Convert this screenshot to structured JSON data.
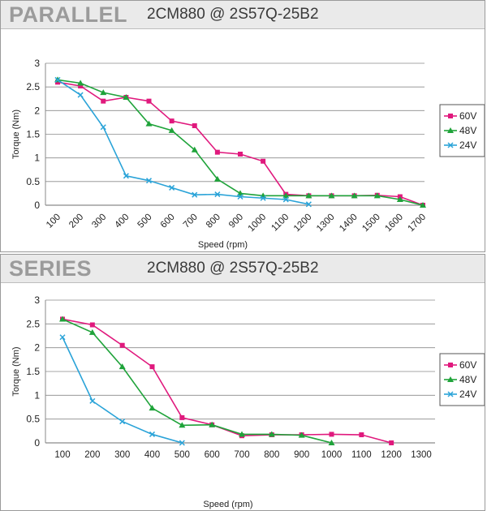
{
  "charts": [
    {
      "section_title": "PARALLEL",
      "model_title": "2CM880 @ 2S57Q-25B2",
      "chart_data": {
        "type": "line",
        "xlabel": "Speed (rpm)",
        "ylabel": "Torque (Nm)",
        "ylim": [
          0,
          3
        ],
        "yticks": [
          "0",
          "0.5",
          "1",
          "1.5",
          "2",
          "2.5",
          "3"
        ],
        "xticks": [
          "100",
          "200",
          "300",
          "400",
          "500",
          "600",
          "700",
          "800",
          "900",
          "1000",
          "1100",
          "1200",
          "1300",
          "1400",
          "1500",
          "1600",
          "1700"
        ],
        "grid": "horizontal",
        "legend": "right",
        "series": [
          {
            "name": "60V",
            "color": "#e0197d",
            "marker": "square",
            "x": [
              100,
              200,
              300,
              400,
              500,
              600,
              700,
              800,
              900,
              1000,
              1100,
              1200,
              1300,
              1400,
              1500,
              1600,
              1700
            ],
            "y": [
              2.6,
              2.52,
              2.2,
              2.28,
              2.2,
              1.78,
              1.68,
              1.12,
              1.08,
              0.93,
              0.23,
              0.2,
              0.2,
              0.2,
              0.21,
              0.18,
              0.0
            ]
          },
          {
            "name": "48V",
            "color": "#1fa33a",
            "marker": "triangle",
            "x": [
              100,
              200,
              300,
              400,
              500,
              600,
              700,
              800,
              900,
              1000,
              1100,
              1200,
              1300,
              1400,
              1500,
              1600,
              1700
            ],
            "y": [
              2.65,
              2.58,
              2.38,
              2.28,
              1.72,
              1.58,
              1.17,
              0.55,
              0.25,
              0.2,
              0.2,
              0.2,
              0.2,
              0.2,
              0.2,
              0.12,
              0.0
            ]
          },
          {
            "name": "24V",
            "color": "#2aa3d8",
            "marker": "x",
            "x": [
              100,
              200,
              300,
              400,
              500,
              600,
              700,
              800,
              900,
              1000,
              1100,
              1200
            ],
            "y": [
              2.65,
              2.33,
              1.65,
              0.62,
              0.52,
              0.37,
              0.22,
              0.23,
              0.18,
              0.15,
              0.12,
              0.02
            ]
          }
        ]
      }
    },
    {
      "section_title": "SERIES",
      "model_title": "2CM880 @ 2S57Q-25B2",
      "chart_data": {
        "type": "line",
        "xlabel": "Speed (rpm)",
        "ylabel": "Torque (Nm)",
        "ylim": [
          0,
          3
        ],
        "yticks": [
          "0",
          "0.5",
          "1",
          "1.5",
          "2",
          "2.5",
          "3"
        ],
        "xticks": [
          "100",
          "200",
          "300",
          "400",
          "500",
          "600",
          "700",
          "800",
          "900",
          "1000",
          "1100",
          "1200",
          "1300"
        ],
        "grid": "horizontal",
        "legend": "right",
        "series": [
          {
            "name": "60V",
            "color": "#e0197d",
            "marker": "square",
            "x": [
              100,
              200,
              300,
              400,
              500,
              600,
              700,
              800,
              900,
              1000,
              1100,
              1200
            ],
            "y": [
              2.6,
              2.48,
              2.05,
              1.6,
              0.53,
              0.38,
              0.15,
              0.17,
              0.17,
              0.18,
              0.17,
              0.0
            ]
          },
          {
            "name": "48V",
            "color": "#1fa33a",
            "marker": "triangle",
            "x": [
              100,
              200,
              300,
              400,
              500,
              600,
              700,
              800,
              900,
              1000
            ],
            "y": [
              2.6,
              2.32,
              1.6,
              0.73,
              0.37,
              0.38,
              0.18,
              0.18,
              0.16,
              0.0
            ]
          },
          {
            "name": "24V",
            "color": "#2aa3d8",
            "marker": "x",
            "x": [
              100,
              200,
              300,
              400,
              500
            ],
            "y": [
              2.22,
              0.88,
              0.45,
              0.18,
              0.0
            ]
          }
        ]
      }
    }
  ]
}
